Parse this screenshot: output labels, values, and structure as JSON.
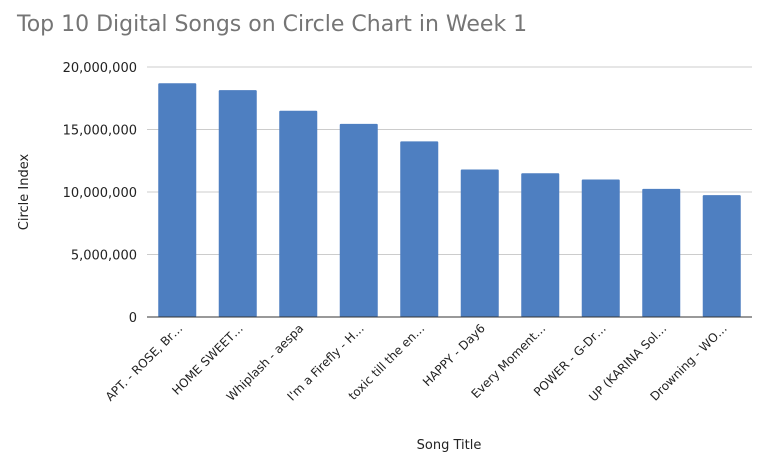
{
  "chart_data": {
    "type": "bar",
    "title": "Top 10 Digital Songs on Circle Chart in Week 1",
    "xlabel": "Song Title",
    "ylabel": "Circle Index",
    "ylim": [
      0,
      20000000
    ],
    "yticks": [
      0,
      5000000,
      10000000,
      15000000,
      20000000
    ],
    "ytick_labels": [
      "0",
      "5,000,000",
      "10,000,000",
      "15,000,000",
      "20,000,000"
    ],
    "grid": true,
    "bar_color": "#4e7fc1",
    "categories": [
      "APT. - ROSE, Br…",
      "HOME SWEET…",
      "Whiplash - aespa",
      "I'm a Firefly - H…",
      "toxic till the en…",
      "HAPPY - Day6",
      "Every Moment…",
      "POWER - G-Dr…",
      "UP (KARINA Sol…",
      "Drowning - WO…"
    ],
    "values": [
      18700000,
      18150000,
      16500000,
      15450000,
      14050000,
      11800000,
      11500000,
      11000000,
      10250000,
      9750000
    ]
  }
}
